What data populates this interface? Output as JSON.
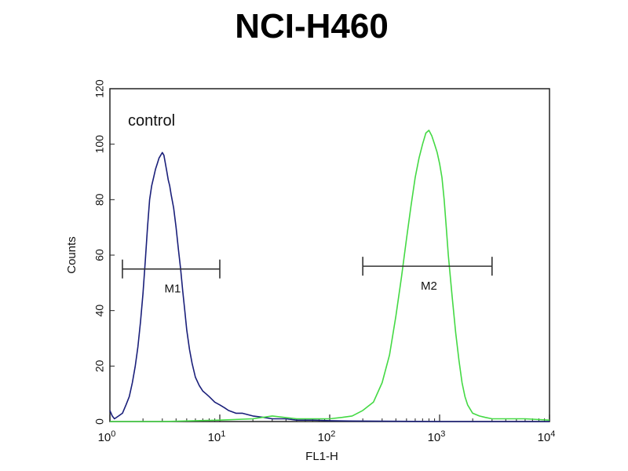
{
  "chart_data": {
    "type": "line",
    "title": "NCI-H460",
    "xlabel": "FL1-H",
    "ylabel": "Counts",
    "xscale": "log",
    "xlim": [
      1,
      10000
    ],
    "ylim": [
      0,
      120
    ],
    "x_ticks": [
      {
        "base": "10",
        "exp": "0",
        "value": 1
      },
      {
        "base": "10",
        "exp": "1",
        "value": 10
      },
      {
        "base": "10",
        "exp": "2",
        "value": 100
      },
      {
        "base": "10",
        "exp": "3",
        "value": 1000
      },
      {
        "base": "10",
        "exp": "4",
        "value": 10000
      }
    ],
    "y_ticks": [
      0,
      20,
      40,
      60,
      80,
      100,
      120
    ],
    "annotation": "control",
    "gates": [
      {
        "label": "M1",
        "x_start": 1.3,
        "x_end": 10,
        "y": 55
      },
      {
        "label": "M2",
        "x_start": 200,
        "x_end": 3000,
        "y": 56
      }
    ],
    "series": [
      {
        "color": "#1a1f7a",
        "x": [
          1,
          1.05,
          1.1,
          1.2,
          1.3,
          1.4,
          1.5,
          1.6,
          1.7,
          1.8,
          1.9,
          2.0,
          2.1,
          2.2,
          2.3,
          2.4,
          2.5,
          2.6,
          2.7,
          2.8,
          2.9,
          3.0,
          3.1,
          3.2,
          3.3,
          3.4,
          3.5,
          3.6,
          3.8,
          4.0,
          4.2,
          4.4,
          4.6,
          4.8,
          5.0,
          5.3,
          5.6,
          6.0,
          6.5,
          7.0,
          7.5,
          8.0,
          9.0,
          10,
          11,
          12,
          14,
          16,
          20,
          25,
          30,
          40,
          50,
          70,
          100,
          150,
          300,
          1000,
          3000,
          10000
        ],
        "y": [
          4,
          2,
          1,
          2,
          3,
          6,
          9,
          14,
          20,
          27,
          36,
          46,
          58,
          70,
          80,
          85,
          88,
          91,
          93,
          95,
          96,
          97,
          96,
          93,
          90,
          87,
          85,
          82,
          77,
          70,
          62,
          55,
          47,
          40,
          33,
          26,
          21,
          16,
          13,
          11,
          10,
          9,
          7,
          6,
          5,
          4,
          3,
          3,
          2,
          1.5,
          1,
          1,
          0.5,
          0.5,
          0.3,
          0.2,
          0.1,
          0,
          0,
          0
        ]
      },
      {
        "color": "#44d944",
        "x": [
          1,
          3,
          10,
          20,
          30,
          50,
          70,
          100,
          130,
          160,
          200,
          250,
          300,
          350,
          400,
          450,
          500,
          550,
          600,
          650,
          700,
          750,
          800,
          850,
          900,
          950,
          1000,
          1050,
          1100,
          1150,
          1200,
          1300,
          1400,
          1500,
          1600,
          1700,
          1800,
          2000,
          2300,
          2600,
          3000,
          4000,
          6000,
          10000
        ],
        "y": [
          0,
          0,
          0.5,
          1,
          2,
          1,
          1,
          1,
          1.5,
          2,
          4,
          7,
          14,
          24,
          38,
          52,
          66,
          78,
          88,
          95,
          100,
          104,
          105,
          103,
          100,
          97,
          93,
          88,
          80,
          70,
          60,
          45,
          32,
          22,
          14,
          9,
          6,
          3,
          2,
          1.5,
          1,
          1,
          1,
          0.5
        ]
      }
    ]
  }
}
